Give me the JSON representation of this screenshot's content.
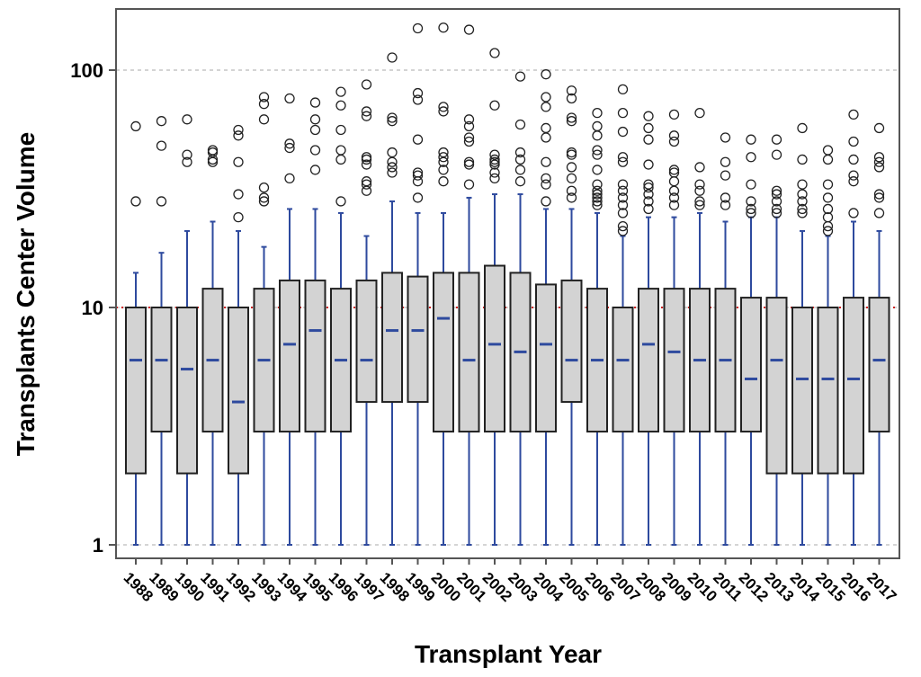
{
  "chart_data": {
    "type": "box",
    "xlabel": "Transplant Year",
    "ylabel": "Transplants Center Volume",
    "y_scale": "log",
    "ylim": [
      1,
      170
    ],
    "yticks": [
      {
        "value": 1,
        "label": "1"
      },
      {
        "value": 10,
        "label": "10"
      },
      {
        "value": 100,
        "label": "100"
      }
    ],
    "reference_line": {
      "value": 10,
      "style": "dotted",
      "color": "#cc2222"
    },
    "grid": {
      "horizontal": true,
      "style": "dashed",
      "color": "#bbbbbb"
    },
    "colors": {
      "box_fill": "#d3d3d3",
      "box_edge": "#222222",
      "whisker": "#2e4a9e",
      "median": "#2e4a9e",
      "outlier": "#222222"
    },
    "categories": [
      "1988",
      "1989",
      "1990",
      "1991",
      "1992",
      "1993",
      "1994",
      "1995",
      "1996",
      "1997",
      "1998",
      "1999",
      "2000",
      "2001",
      "2002",
      "2003",
      "2004",
      "2005",
      "2006",
      "2007",
      "2008",
      "2009",
      "2010",
      "2011",
      "2012",
      "2013",
      "2014",
      "2015",
      "2016",
      "2017"
    ],
    "boxes": [
      {
        "q1": 2,
        "median": 6,
        "q3": 10,
        "whisker_low": 1,
        "whisker_high": 14,
        "outliers": [
          28,
          58
        ]
      },
      {
        "q1": 3,
        "median": 6,
        "q3": 10,
        "whisker_low": 1,
        "whisker_high": 17,
        "outliers": [
          28,
          48,
          61
        ]
      },
      {
        "q1": 2,
        "median": 5.5,
        "q3": 10,
        "whisker_low": 1,
        "whisker_high": 21,
        "outliers": [
          41,
          44,
          62
        ]
      },
      {
        "q1": 3,
        "median": 6,
        "q3": 12,
        "whisker_low": 1,
        "whisker_high": 23,
        "outliers": [
          41,
          42,
          45,
          46
        ]
      },
      {
        "q1": 2,
        "median": 4,
        "q3": 10,
        "whisker_low": 1,
        "whisker_high": 21,
        "outliers": [
          24,
          30,
          41,
          53,
          56
        ]
      },
      {
        "q1": 3,
        "median": 6,
        "q3": 12,
        "whisker_low": 1,
        "whisker_high": 18,
        "outliers": [
          28,
          29,
          32,
          62,
          72,
          77
        ]
      },
      {
        "q1": 3,
        "median": 7,
        "q3": 13,
        "whisker_low": 1,
        "whisker_high": 26,
        "outliers": [
          35,
          47,
          49,
          76
        ]
      },
      {
        "q1": 3,
        "median": 8,
        "q3": 13,
        "whisker_low": 1,
        "whisker_high": 26,
        "outliers": [
          38,
          46,
          56,
          62,
          73
        ]
      },
      {
        "q1": 3,
        "median": 6,
        "q3": 12,
        "whisker_low": 1,
        "whisker_high": 25,
        "outliers": [
          28,
          42,
          46,
          56,
          71,
          81
        ]
      },
      {
        "q1": 4,
        "median": 6,
        "q3": 13,
        "whisker_low": 1,
        "whisker_high": 20,
        "outliers": [
          31,
          33,
          34,
          40,
          42,
          43,
          64,
          67,
          87
        ]
      },
      {
        "q1": 4,
        "median": 8,
        "q3": 14,
        "whisker_low": 1,
        "whisker_high": 28,
        "outliers": [
          37,
          39,
          41,
          45,
          61,
          63,
          113
        ]
      },
      {
        "q1": 4,
        "median": 8,
        "q3": 13.5,
        "whisker_low": 1,
        "whisker_high": 25,
        "outliers": [
          29,
          34,
          36,
          37,
          51,
          75,
          80,
          150
        ]
      },
      {
        "q1": 3,
        "median": 9,
        "q3": 14,
        "whisker_low": 1,
        "whisker_high": 25,
        "outliers": [
          34,
          38,
          41,
          43,
          45,
          67,
          70,
          151
        ]
      },
      {
        "q1": 3,
        "median": 6,
        "q3": 14,
        "whisker_low": 1,
        "whisker_high": 29,
        "outliers": [
          33,
          40,
          41,
          50,
          52,
          58,
          62,
          148
        ]
      },
      {
        "q1": 3,
        "median": 7,
        "q3": 15,
        "whisker_low": 1,
        "whisker_high": 30,
        "outliers": [
          35,
          37,
          40,
          41,
          42,
          44,
          71,
          118
        ]
      },
      {
        "q1": 3,
        "median": 6.5,
        "q3": 14,
        "whisker_low": 1,
        "whisker_high": 30,
        "outliers": [
          34,
          38,
          42,
          45,
          59,
          94
        ]
      },
      {
        "q1": 3,
        "median": 7,
        "q3": 12.5,
        "whisker_low": 1,
        "whisker_high": 26,
        "outliers": [
          28,
          33,
          35,
          41,
          52,
          57,
          70,
          77,
          96
        ]
      },
      {
        "q1": 4,
        "median": 6,
        "q3": 13,
        "whisker_low": 1,
        "whisker_high": 26,
        "outliers": [
          29,
          31,
          35,
          39,
          44,
          45,
          61,
          63,
          76,
          82
        ]
      },
      {
        "q1": 3,
        "median": 6,
        "q3": 12,
        "whisker_low": 1,
        "whisker_high": 25,
        "outliers": [
          27,
          28,
          29,
          30,
          31,
          33,
          38,
          44,
          46,
          53,
          58,
          66
        ]
      },
      {
        "q1": 3,
        "median": 6,
        "q3": 10,
        "whisker_low": 1,
        "whisker_high": 20,
        "outliers": [
          21,
          22,
          25,
          27,
          29,
          31,
          33,
          41,
          43,
          55,
          66,
          83
        ]
      },
      {
        "q1": 3,
        "median": 7,
        "q3": 12,
        "whisker_low": 1,
        "whisker_high": 24,
        "outliers": [
          26,
          28,
          30,
          32,
          33,
          40,
          51,
          57,
          64
        ]
      },
      {
        "q1": 3,
        "median": 6.5,
        "q3": 12,
        "whisker_low": 1,
        "whisker_high": 24,
        "outliers": [
          27,
          29,
          31,
          34,
          37,
          38,
          50,
          53,
          65
        ]
      },
      {
        "q1": 3,
        "median": 6,
        "q3": 12,
        "whisker_low": 1,
        "whisker_high": 25,
        "outliers": [
          27,
          28,
          31,
          33,
          39,
          66
        ]
      },
      {
        "q1": 3,
        "median": 6,
        "q3": 12,
        "whisker_low": 1,
        "whisker_high": 23,
        "outliers": [
          27,
          29,
          36,
          41,
          52
        ]
      },
      {
        "q1": 3,
        "median": 5,
        "q3": 11,
        "whisker_low": 1,
        "whisker_high": 24,
        "outliers": [
          25,
          26,
          28,
          33,
          43,
          51
        ]
      },
      {
        "q1": 2,
        "median": 6,
        "q3": 11,
        "whisker_low": 1,
        "whisker_high": 24,
        "outliers": [
          25,
          26,
          28,
          30,
          31,
          44,
          51
        ]
      },
      {
        "q1": 2,
        "median": 5,
        "q3": 10,
        "whisker_low": 1,
        "whisker_high": 21,
        "outliers": [
          25,
          26,
          28,
          30,
          33,
          42,
          57
        ]
      },
      {
        "q1": 2,
        "median": 5,
        "q3": 10,
        "whisker_low": 1,
        "whisker_high": 20,
        "outliers": [
          21,
          22,
          24,
          26,
          29,
          33,
          42,
          46
        ]
      },
      {
        "q1": 2,
        "median": 5,
        "q3": 11,
        "whisker_low": 1,
        "whisker_high": 23,
        "outliers": [
          25,
          34,
          36,
          42,
          50,
          65
        ]
      },
      {
        "q1": 3,
        "median": 6,
        "q3": 11,
        "whisker_low": 1,
        "whisker_high": 21,
        "outliers": [
          25,
          29,
          30,
          39,
          41,
          43,
          57
        ]
      }
    ]
  }
}
